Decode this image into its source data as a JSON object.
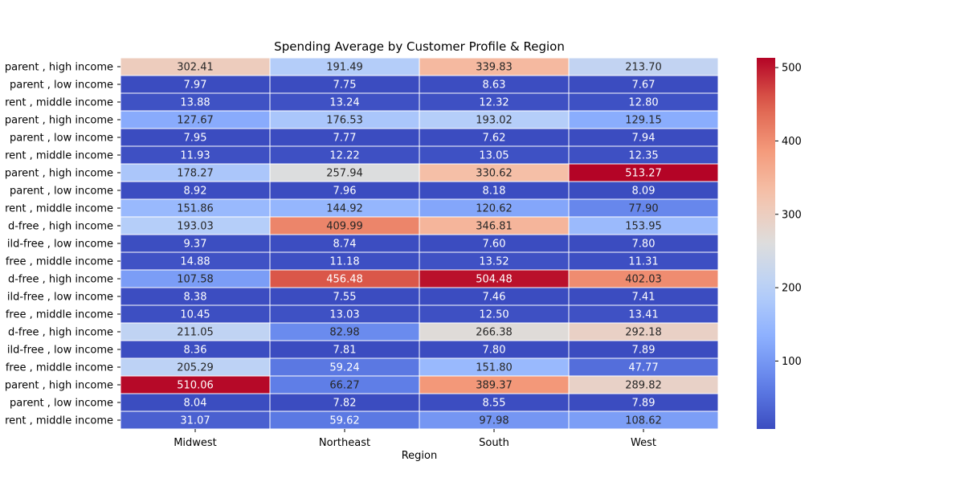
{
  "chart_data": {
    "type": "heatmap",
    "title": "Spending Average by Customer Profile & Region",
    "xlabel": "Region",
    "ylabel": "",
    "columns": [
      "Midwest",
      "Northeast",
      "South",
      "West"
    ],
    "rows": [
      "parent , high income",
      " parent , low income",
      "rent , middle income",
      "parent , high income",
      " parent , low income",
      "rent , middle income",
      "parent , high income",
      " parent , low income",
      "rent , middle income",
      "d-free , high income",
      "ild-free , low income",
      "free , middle income",
      "d-free , high income",
      "ild-free , low income",
      "free , middle income",
      "d-free , high income",
      "ild-free , low income",
      "free , middle income",
      "parent , high income",
      " parent , low income",
      "rent , middle income"
    ],
    "values": [
      [
        302.41,
        191.49,
        339.83,
        213.7
      ],
      [
        7.97,
        7.75,
        8.63,
        7.67
      ],
      [
        13.88,
        13.24,
        12.32,
        12.8
      ],
      [
        127.67,
        176.53,
        193.02,
        129.15
      ],
      [
        7.95,
        7.77,
        7.62,
        7.94
      ],
      [
        11.93,
        12.22,
        13.05,
        12.35
      ],
      [
        178.27,
        257.94,
        330.62,
        513.27
      ],
      [
        8.92,
        7.96,
        8.18,
        8.09
      ],
      [
        151.86,
        144.92,
        120.62,
        77.9
      ],
      [
        193.03,
        409.99,
        346.81,
        153.95
      ],
      [
        9.37,
        8.74,
        7.6,
        7.8
      ],
      [
        14.88,
        11.18,
        13.52,
        11.31
      ],
      [
        107.58,
        456.48,
        504.48,
        402.03
      ],
      [
        8.38,
        7.55,
        7.46,
        7.41
      ],
      [
        10.45,
        13.03,
        12.5,
        13.41
      ],
      [
        211.05,
        82.98,
        266.38,
        292.18
      ],
      [
        8.36,
        7.81,
        7.8,
        7.89
      ],
      [
        205.29,
        59.24,
        151.8,
        47.77
      ],
      [
        510.06,
        66.27,
        389.37,
        289.82
      ],
      [
        8.04,
        7.82,
        8.55,
        7.89
      ],
      [
        31.07,
        59.62,
        97.98,
        108.62
      ]
    ],
    "value_range": [
      7.41,
      513.27
    ],
    "colormap": "coolwarm",
    "colorbar_ticks": [
      "100",
      "200",
      "300",
      "400",
      "500"
    ],
    "annotate_cells": true,
    "grid": false
  }
}
